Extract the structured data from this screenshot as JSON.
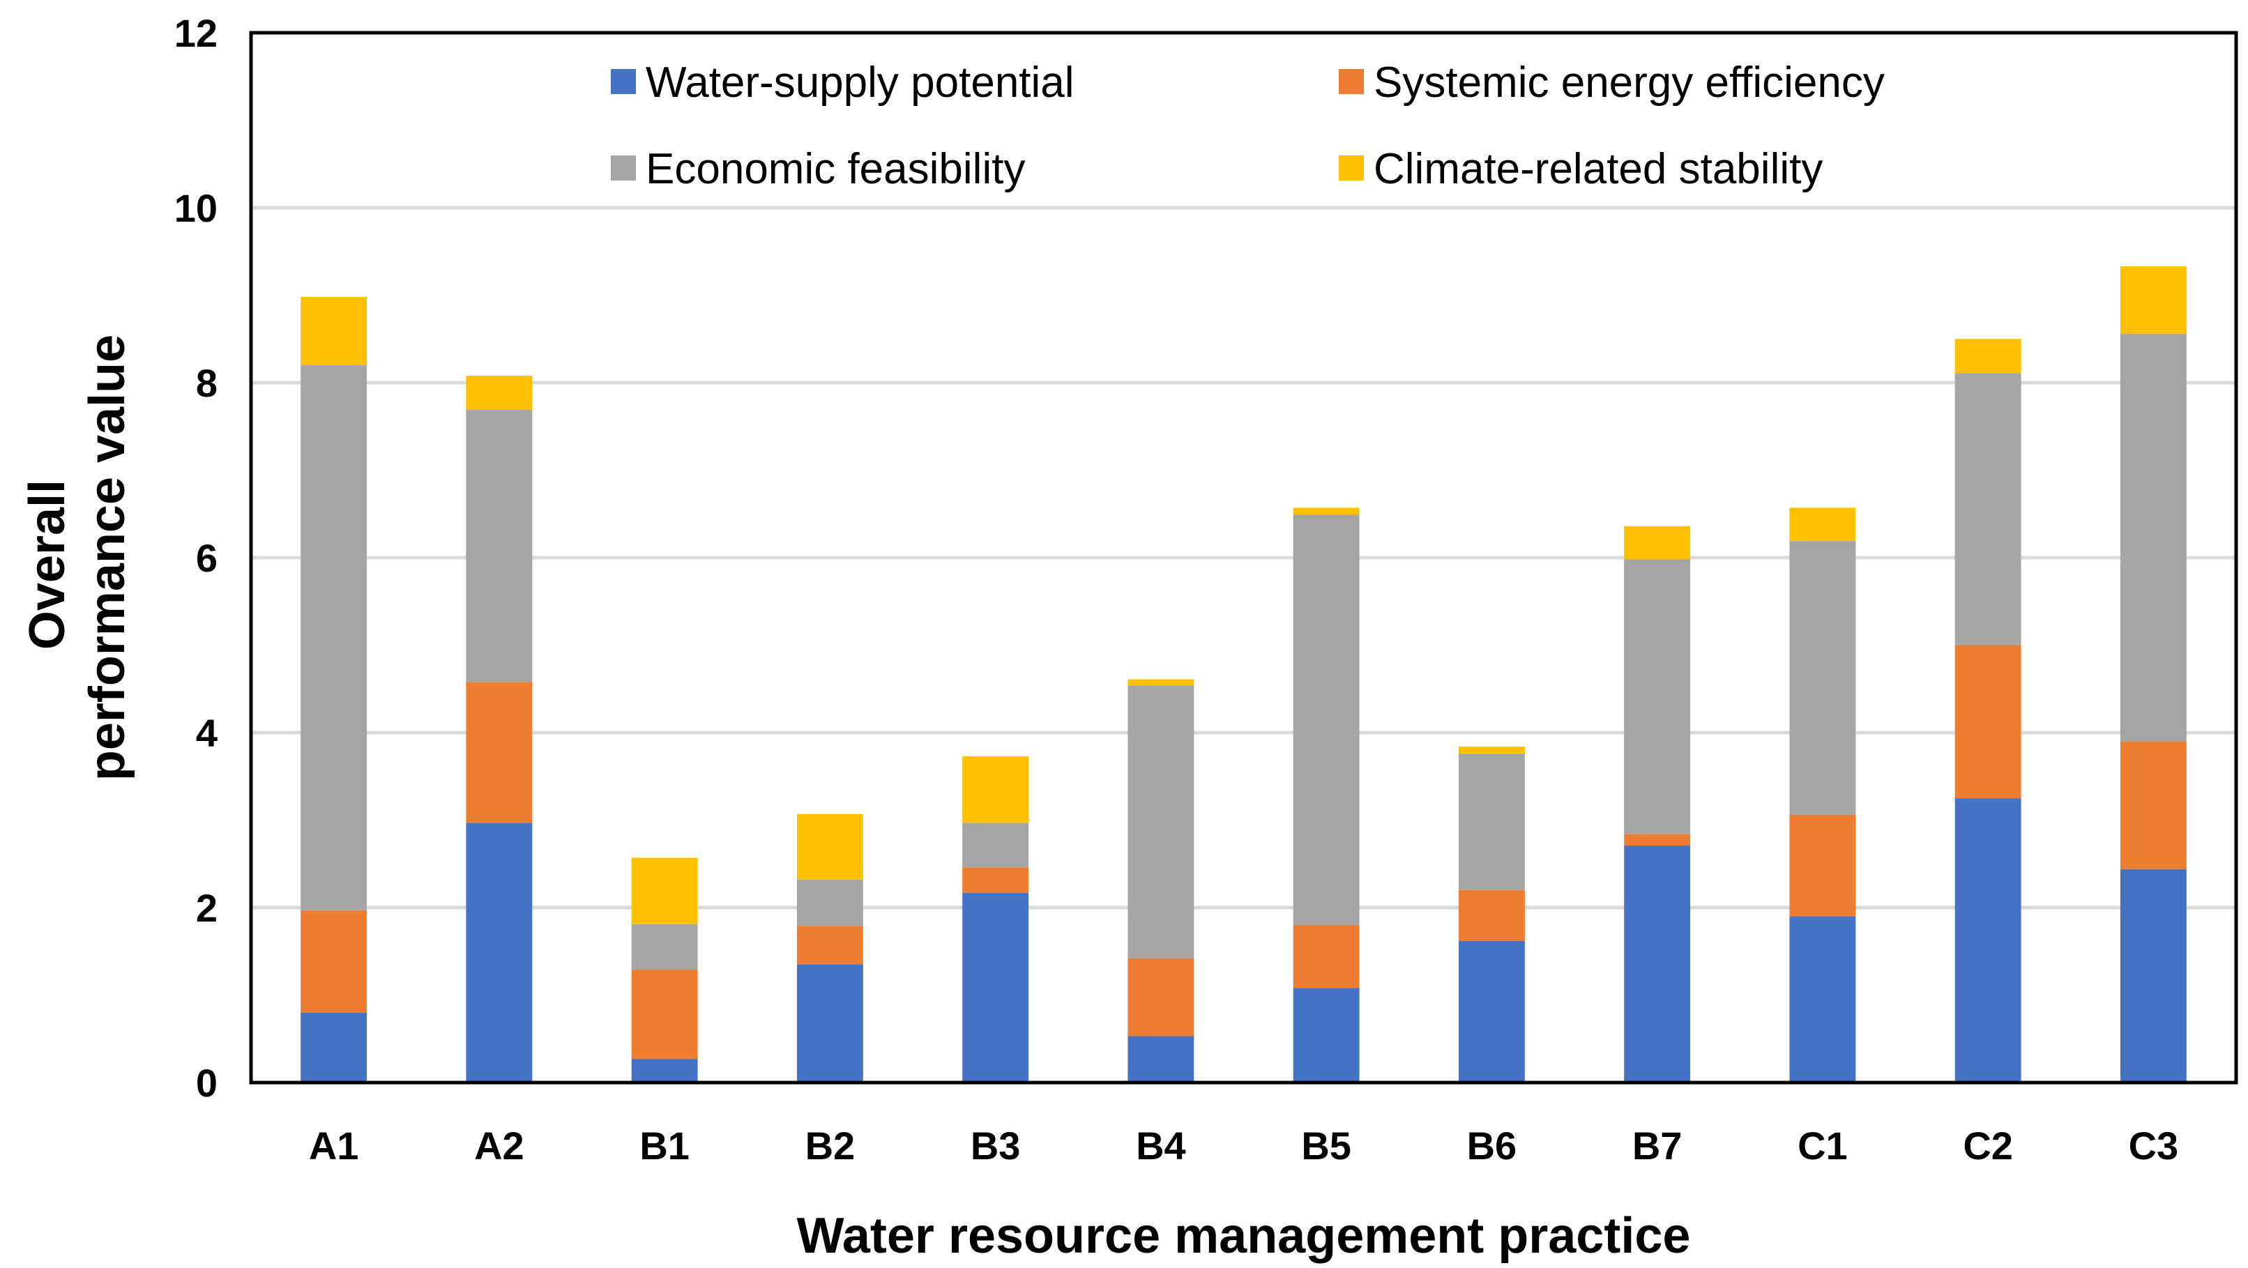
{
  "chart_data": {
    "type": "bar",
    "stacked": true,
    "categories": [
      "A1",
      "A2",
      "B1",
      "B2",
      "B3",
      "B4",
      "B5",
      "B6",
      "B7",
      "C1",
      "C2",
      "C3"
    ],
    "series": [
      {
        "name": "Water-supply potential",
        "color": "#4472C4",
        "values": [
          0.8,
          2.97,
          0.27,
          1.35,
          2.17,
          0.53,
          1.08,
          1.62,
          2.71,
          1.9,
          3.25,
          2.44
        ]
      },
      {
        "name": "Systemic energy efficiency",
        "color": "#ED7D31",
        "values": [
          1.17,
          1.61,
          1.02,
          0.44,
          0.29,
          0.89,
          0.72,
          0.58,
          0.13,
          1.16,
          1.75,
          1.46
        ]
      },
      {
        "name": "Economic feasibility",
        "color": "#A5A5A5",
        "values": [
          6.23,
          3.11,
          0.52,
          0.53,
          0.51,
          3.12,
          4.69,
          1.56,
          3.14,
          3.13,
          3.11,
          4.66
        ]
      },
      {
        "name": "Climate-related stability",
        "color": "#FFC000",
        "values": [
          0.78,
          0.39,
          0.76,
          0.75,
          0.76,
          0.07,
          0.08,
          0.08,
          0.38,
          0.38,
          0.39,
          0.77
        ]
      }
    ],
    "xlabel": "Water resource management practice",
    "ylabel": [
      "Overall",
      "performance value"
    ],
    "ylim": [
      0,
      12
    ],
    "yticks": [
      "0",
      "2",
      "4",
      "6",
      "8",
      "10",
      "12"
    ],
    "grid": true,
    "legend_position": "top"
  }
}
